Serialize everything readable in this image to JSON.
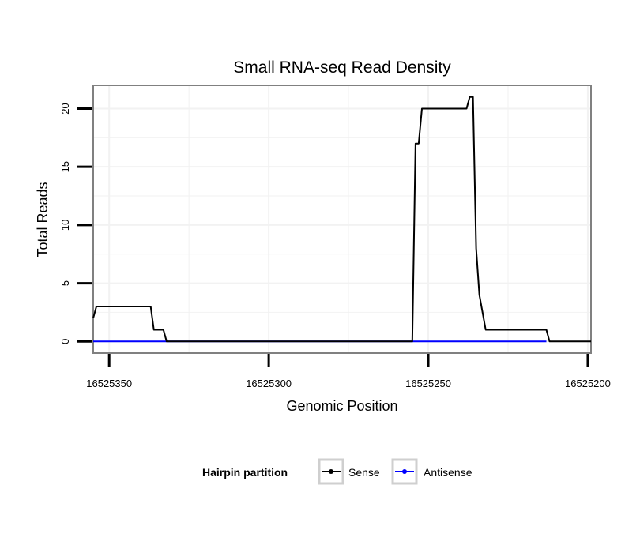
{
  "chart_data": {
    "type": "line",
    "title": "Small RNA-seq Read Density",
    "xlabel": "Genomic Position",
    "ylabel": "Total Reads",
    "xlim": [
      16525355,
      16525199
    ],
    "ylim": [
      -1,
      22
    ],
    "x_reversed": true,
    "x_ticks": [
      16525350,
      16525300,
      16525250,
      16525200
    ],
    "x_tick_labels": [
      "16525350",
      "16525300",
      "16525250",
      "16525200"
    ],
    "y_ticks": [
      0,
      5,
      10,
      15,
      20
    ],
    "y_tick_labels": [
      "0",
      "5",
      "10",
      "15",
      "20"
    ],
    "grid": true,
    "legend": {
      "title": "Hairpin partition",
      "position": "bottom",
      "entries": [
        "Sense",
        "Antisense"
      ]
    },
    "series": [
      {
        "name": "Sense",
        "color": "#000000",
        "x": [
          16525355,
          16525354,
          16525337,
          16525336,
          16525333,
          16525332,
          16525305,
          16525255,
          16525254,
          16525253,
          16525252,
          16525238,
          16525237,
          16525236,
          16525235,
          16525234,
          16525232,
          16525231,
          16525213,
          16525212,
          16525199
        ],
        "y": [
          2,
          3,
          3,
          1,
          1,
          0,
          0,
          0,
          17,
          17,
          20,
          20,
          21,
          21,
          8,
          4,
          1,
          1,
          1,
          0,
          0
        ]
      },
      {
        "name": "Antisense",
        "color": "#0000ff",
        "x": [
          16525355,
          16525213
        ],
        "y": [
          0,
          0
        ]
      }
    ]
  }
}
